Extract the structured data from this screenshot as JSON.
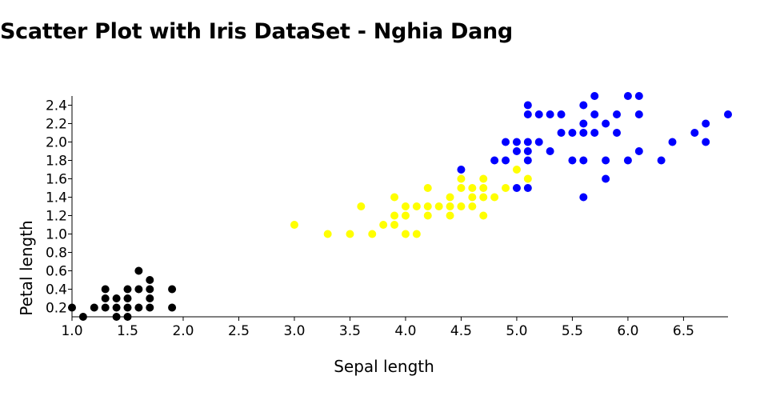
{
  "page": {
    "title": "Scatter Plot with Iris DataSet - Nghia Dang"
  },
  "chart_data": {
    "type": "scatter",
    "title": "Scatter Plot with Iris DataSet - Nghia Dang",
    "xlabel": "Sepal length",
    "ylabel": "Petal length",
    "xlim": [
      1.0,
      6.9
    ],
    "ylim": [
      0.1,
      2.5
    ],
    "x_ticks": [
      "1.0",
      "1.5",
      "2.0",
      "2.5",
      "3.0",
      "3.5",
      "4.0",
      "4.5",
      "5.0",
      "5.5",
      "6.0",
      "6.5"
    ],
    "y_ticks": [
      "0.2",
      "0.4",
      "0.6",
      "0.8",
      "1.0",
      "1.2",
      "1.4",
      "1.6",
      "1.8",
      "2.0",
      "2.2",
      "2.4"
    ],
    "grid": false,
    "legend": "none",
    "series": [
      {
        "color": "#000000",
        "points": [
          [
            1.0,
            0.2
          ],
          [
            1.1,
            0.1
          ],
          [
            1.2,
            0.2
          ],
          [
            1.3,
            0.2
          ],
          [
            1.3,
            0.3
          ],
          [
            1.3,
            0.4
          ],
          [
            1.4,
            0.1
          ],
          [
            1.4,
            0.2
          ],
          [
            1.4,
            0.3
          ],
          [
            1.5,
            0.1
          ],
          [
            1.5,
            0.2
          ],
          [
            1.5,
            0.3
          ],
          [
            1.5,
            0.4
          ],
          [
            1.6,
            0.2
          ],
          [
            1.6,
            0.4
          ],
          [
            1.6,
            0.6
          ],
          [
            1.7,
            0.2
          ],
          [
            1.7,
            0.3
          ],
          [
            1.7,
            0.4
          ],
          [
            1.7,
            0.5
          ],
          [
            1.9,
            0.2
          ],
          [
            1.9,
            0.4
          ]
        ]
      },
      {
        "color": "#ffff00",
        "points": [
          [
            3.0,
            1.1
          ],
          [
            3.3,
            1.0
          ],
          [
            3.5,
            1.0
          ],
          [
            3.6,
            1.3
          ],
          [
            3.7,
            1.0
          ],
          [
            3.8,
            1.1
          ],
          [
            3.9,
            1.1
          ],
          [
            3.9,
            1.2
          ],
          [
            3.9,
            1.4
          ],
          [
            4.0,
            1.0
          ],
          [
            4.0,
            1.2
          ],
          [
            4.0,
            1.3
          ],
          [
            4.1,
            1.0
          ],
          [
            4.1,
            1.3
          ],
          [
            4.2,
            1.2
          ],
          [
            4.2,
            1.3
          ],
          [
            4.2,
            1.5
          ],
          [
            4.3,
            1.3
          ],
          [
            4.4,
            1.2
          ],
          [
            4.4,
            1.3
          ],
          [
            4.4,
            1.4
          ],
          [
            4.5,
            1.3
          ],
          [
            4.5,
            1.5
          ],
          [
            4.5,
            1.6
          ],
          [
            4.6,
            1.3
          ],
          [
            4.6,
            1.4
          ],
          [
            4.6,
            1.5
          ],
          [
            4.7,
            1.2
          ],
          [
            4.7,
            1.4
          ],
          [
            4.7,
            1.5
          ],
          [
            4.7,
            1.6
          ],
          [
            4.8,
            1.4
          ],
          [
            4.9,
            1.5
          ],
          [
            5.0,
            1.7
          ],
          [
            5.1,
            1.6
          ]
        ]
      },
      {
        "color": "#0000ff",
        "points": [
          [
            4.5,
            1.7
          ],
          [
            4.8,
            1.8
          ],
          [
            4.9,
            1.8
          ],
          [
            4.9,
            2.0
          ],
          [
            5.0,
            1.5
          ],
          [
            5.0,
            1.9
          ],
          [
            5.0,
            2.0
          ],
          [
            5.1,
            1.5
          ],
          [
            5.1,
            1.8
          ],
          [
            5.1,
            1.9
          ],
          [
            5.1,
            2.0
          ],
          [
            5.1,
            2.3
          ],
          [
            5.1,
            2.4
          ],
          [
            5.2,
            2.0
          ],
          [
            5.2,
            2.3
          ],
          [
            5.3,
            1.9
          ],
          [
            5.3,
            2.3
          ],
          [
            5.4,
            2.1
          ],
          [
            5.4,
            2.3
          ],
          [
            5.5,
            1.8
          ],
          [
            5.5,
            2.1
          ],
          [
            5.6,
            1.4
          ],
          [
            5.6,
            1.8
          ],
          [
            5.6,
            2.1
          ],
          [
            5.6,
            2.2
          ],
          [
            5.6,
            2.4
          ],
          [
            5.7,
            2.1
          ],
          [
            5.7,
            2.3
          ],
          [
            5.7,
            2.5
          ],
          [
            5.8,
            1.6
          ],
          [
            5.8,
            1.8
          ],
          [
            5.8,
            2.2
          ],
          [
            5.9,
            2.1
          ],
          [
            5.9,
            2.3
          ],
          [
            6.0,
            1.8
          ],
          [
            6.0,
            2.5
          ],
          [
            6.1,
            1.9
          ],
          [
            6.1,
            2.3
          ],
          [
            6.1,
            2.5
          ],
          [
            6.3,
            1.8
          ],
          [
            6.4,
            2.0
          ],
          [
            6.6,
            2.1
          ],
          [
            6.7,
            2.0
          ],
          [
            6.7,
            2.2
          ],
          [
            6.9,
            2.3
          ]
        ]
      }
    ]
  }
}
